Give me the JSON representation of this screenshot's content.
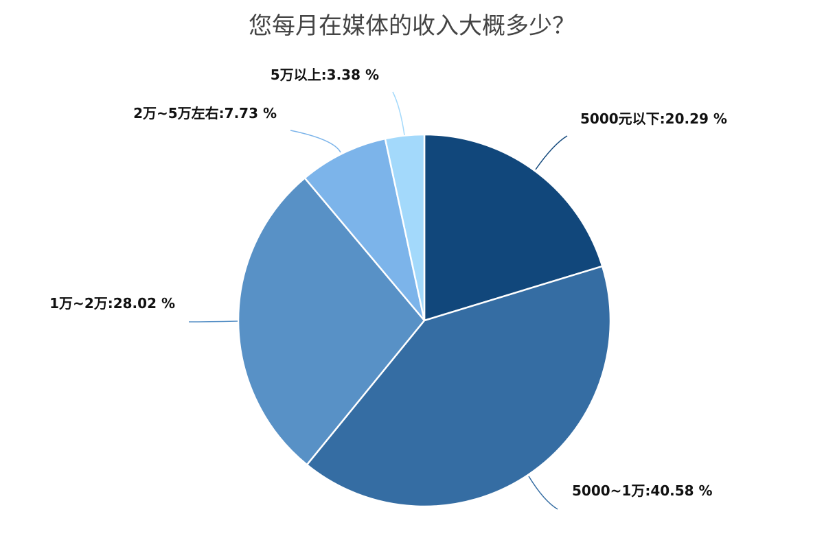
{
  "chart_data": {
    "type": "pie",
    "title": "您每月在媒体的收入大概多少？",
    "slices": [
      {
        "label": "5000元以下:20.29 %",
        "value": 20.29,
        "color": "#11477B"
      },
      {
        "label": "5000~1万:40.58 %",
        "value": 40.58,
        "color": "#356DA3"
      },
      {
        "label": "1万~2万:28.02 %",
        "value": 28.02,
        "color": "#5891C6"
      },
      {
        "label": "2万~5万左右:7.73 %",
        "value": 7.73,
        "color": "#7CB4EA"
      },
      {
        "label": "5万以上:3.38 %",
        "value": 3.38,
        "color": "#A3D9FB"
      }
    ]
  }
}
